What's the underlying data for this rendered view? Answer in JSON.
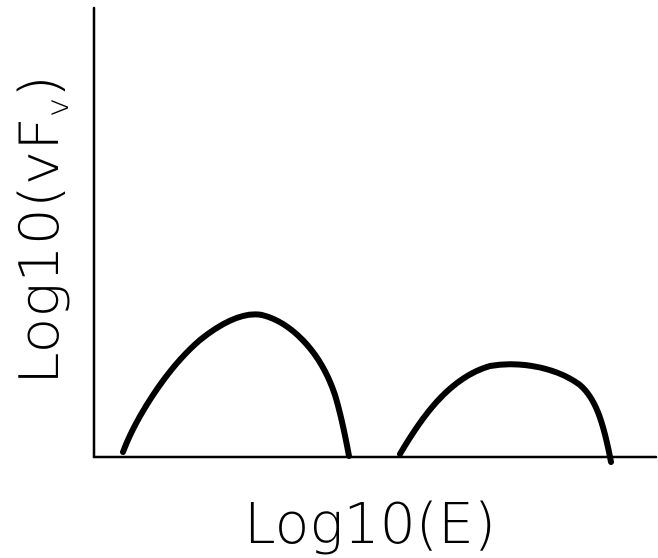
{
  "diagram": {
    "x_axis_label": "Log10(E)",
    "y_axis_label": "Log10(vF",
    "y_axis_label_subscript": "v",
    "y_axis_label_close": ")",
    "ink_color": "#000000",
    "background_color": "#ffffff"
  }
}
